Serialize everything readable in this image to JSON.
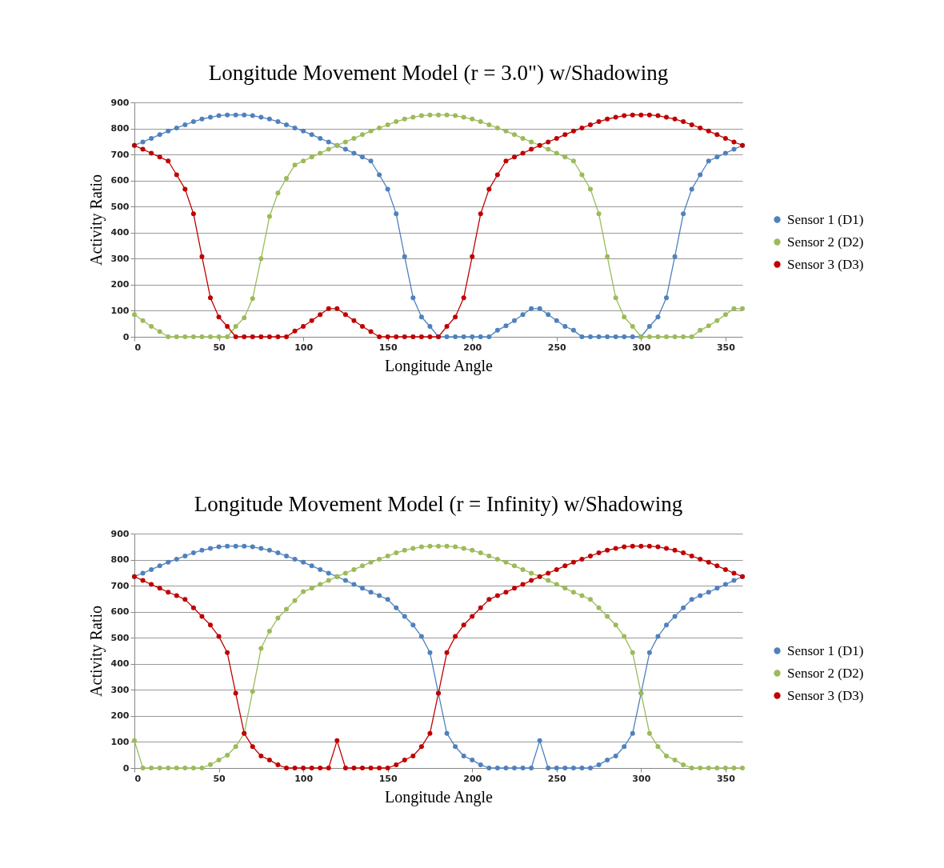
{
  "chart_data": [
    {
      "type": "line",
      "title": "Longitude Movement Model (r = 3.0\") w/Shadowing",
      "xlabel": "Longitude Angle",
      "ylabel": "Activity Ratio",
      "x": [
        0,
        5,
        10,
        15,
        20,
        25,
        30,
        35,
        40,
        45,
        50,
        55,
        60,
        65,
        70,
        75,
        80,
        85,
        90,
        95,
        100,
        105,
        110,
        115,
        120,
        125,
        130,
        135,
        140,
        145,
        150,
        155,
        160,
        165,
        170,
        175,
        180,
        185,
        190,
        195,
        200,
        205,
        210,
        215,
        220,
        225,
        230,
        235,
        240,
        245,
        250,
        255,
        260,
        265,
        270,
        275,
        280,
        285,
        290,
        295,
        300,
        305,
        310,
        315,
        320,
        325,
        330,
        335,
        340,
        345,
        350,
        355,
        360
      ],
      "xlim": [
        0,
        360
      ],
      "xticks": [
        0,
        50,
        100,
        150,
        200,
        250,
        300,
        350
      ],
      "ylim": [
        0,
        900
      ],
      "yticks": [
        0,
        100,
        200,
        300,
        400,
        500,
        600,
        700,
        800,
        900
      ],
      "grid": "y",
      "legend": "right",
      "marker": "circle",
      "series": [
        {
          "name": "Sensor 1 (D1)",
          "color": "#4f81bd",
          "values": [
            735,
            748,
            762,
            776,
            790,
            802,
            814,
            826,
            836,
            843,
            849,
            852,
            852,
            852,
            849,
            843,
            836,
            826,
            814,
            802,
            790,
            776,
            762,
            748,
            735,
            720,
            705,
            690,
            675,
            622,
            567,
            472,
            308,
            150,
            76,
            40,
            0,
            0,
            0,
            0,
            0,
            0,
            0,
            25,
            42,
            62,
            85,
            108,
            108,
            85,
            62,
            40,
            25,
            0,
            0,
            0,
            0,
            0,
            0,
            0,
            0,
            40,
            76,
            150,
            308,
            472,
            567,
            622,
            675,
            690,
            705,
            720,
            735
          ]
        },
        {
          "name": "Sensor 2 (D2)",
          "color": "#9bbb59",
          "values": [
            85,
            62,
            40,
            20,
            0,
            0,
            0,
            0,
            0,
            0,
            0,
            0,
            40,
            73,
            147,
            300,
            462,
            552,
            608,
            660,
            675,
            690,
            705,
            720,
            735,
            748,
            762,
            776,
            790,
            802,
            814,
            826,
            836,
            843,
            849,
            852,
            852,
            852,
            849,
            843,
            836,
            826,
            814,
            802,
            790,
            776,
            762,
            748,
            735,
            720,
            705,
            690,
            675,
            622,
            567,
            472,
            308,
            150,
            76,
            40,
            0,
            0,
            0,
            0,
            0,
            0,
            0,
            25,
            42,
            62,
            85,
            108,
            108
          ]
        },
        {
          "name": "Sensor 3 (D3)",
          "color": "#c00000",
          "values": [
            735,
            720,
            705,
            690,
            675,
            622,
            567,
            472,
            308,
            150,
            76,
            40,
            0,
            0,
            0,
            0,
            0,
            0,
            0,
            22,
            40,
            62,
            85,
            108,
            108,
            85,
            62,
            40,
            20,
            0,
            0,
            0,
            0,
            0,
            0,
            0,
            0,
            40,
            76,
            150,
            308,
            472,
            567,
            622,
            675,
            690,
            705,
            720,
            735,
            748,
            762,
            776,
            790,
            802,
            814,
            826,
            836,
            843,
            849,
            852,
            852,
            852,
            849,
            843,
            836,
            826,
            814,
            802,
            790,
            776,
            762,
            748,
            735
          ]
        }
      ]
    },
    {
      "type": "line",
      "title": "Longitude Movement Model (r = Infinity) w/Shadowing",
      "xlabel": "Longitude Angle",
      "ylabel": "Activity Ratio",
      "x": [
        0,
        5,
        10,
        15,
        20,
        25,
        30,
        35,
        40,
        45,
        50,
        55,
        60,
        65,
        70,
        75,
        80,
        85,
        90,
        95,
        100,
        105,
        110,
        115,
        120,
        125,
        130,
        135,
        140,
        145,
        150,
        155,
        160,
        165,
        170,
        175,
        180,
        185,
        190,
        195,
        200,
        205,
        210,
        215,
        220,
        225,
        230,
        235,
        240,
        245,
        250,
        255,
        260,
        265,
        270,
        275,
        280,
        285,
        290,
        295,
        300,
        305,
        310,
        315,
        320,
        325,
        330,
        335,
        340,
        345,
        350,
        355,
        360
      ],
      "xlim": [
        0,
        360
      ],
      "xticks": [
        0,
        50,
        100,
        150,
        200,
        250,
        300,
        350
      ],
      "ylim": [
        0,
        900
      ],
      "yticks": [
        0,
        100,
        200,
        300,
        400,
        500,
        600,
        700,
        800,
        900
      ],
      "grid": "y",
      "legend": "right",
      "marker": "circle",
      "series": [
        {
          "name": "Sensor 1 (D1)",
          "color": "#4f81bd",
          "values": [
            735,
            748,
            762,
            776,
            790,
            802,
            814,
            826,
            836,
            843,
            849,
            852,
            852,
            852,
            849,
            843,
            836,
            826,
            814,
            802,
            790,
            776,
            762,
            748,
            735,
            720,
            705,
            690,
            675,
            662,
            647,
            615,
            582,
            549,
            505,
            443,
            287,
            133,
            82,
            46,
            31,
            12,
            0,
            0,
            0,
            0,
            0,
            0,
            105,
            0,
            0,
            0,
            0,
            0,
            0,
            12,
            31,
            46,
            82,
            133,
            287,
            443,
            505,
            549,
            582,
            615,
            647,
            662,
            675,
            690,
            705,
            720,
            735
          ]
        },
        {
          "name": "Sensor 2 (D2)",
          "color": "#9bbb59",
          "values": [
            105,
            0,
            0,
            0,
            0,
            0,
            0,
            0,
            0,
            13,
            31,
            49,
            82,
            133,
            294,
            459,
            525,
            576,
            610,
            643,
            677,
            690,
            705,
            720,
            735,
            748,
            762,
            776,
            790,
            802,
            814,
            826,
            836,
            843,
            849,
            852,
            852,
            852,
            849,
            843,
            836,
            826,
            814,
            802,
            790,
            776,
            762,
            748,
            735,
            720,
            705,
            690,
            675,
            662,
            647,
            615,
            582,
            549,
            505,
            443,
            287,
            133,
            82,
            46,
            31,
            12,
            0,
            0,
            0,
            0,
            0,
            0,
            0
          ]
        },
        {
          "name": "Sensor 3 (D3)",
          "color": "#c00000",
          "values": [
            735,
            720,
            705,
            690,
            675,
            662,
            647,
            615,
            582,
            549,
            505,
            443,
            287,
            133,
            82,
            46,
            31,
            12,
            0,
            0,
            0,
            0,
            0,
            0,
            105,
            0,
            0,
            0,
            0,
            0,
            0,
            12,
            31,
            46,
            82,
            133,
            287,
            443,
            505,
            549,
            582,
            615,
            647,
            662,
            675,
            690,
            705,
            720,
            735,
            748,
            762,
            776,
            790,
            802,
            814,
            826,
            836,
            843,
            849,
            852,
            852,
            852,
            849,
            843,
            836,
            826,
            814,
            802,
            790,
            776,
            762,
            748,
            735
          ]
        }
      ]
    }
  ]
}
